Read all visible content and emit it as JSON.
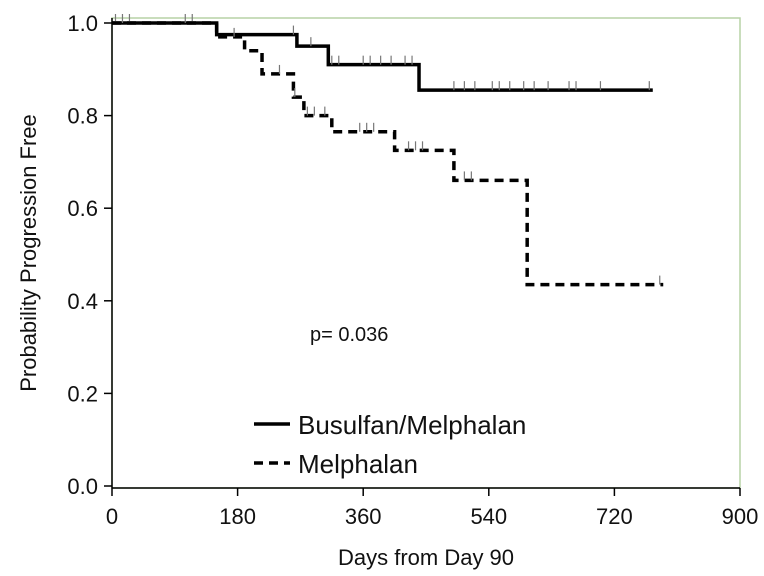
{
  "chart_data": {
    "type": "line",
    "xlabel": "Days from Day 90",
    "ylabel": "Probability Progression Free",
    "xlim": [
      0,
      900
    ],
    "ylim": [
      0.0,
      1.0
    ],
    "x_ticks": [
      0,
      180,
      360,
      540,
      720,
      900
    ],
    "y_ticks": [
      0.0,
      0.2,
      0.4,
      0.6,
      0.8,
      1.0
    ],
    "x_tick_labels": [
      "0",
      "180",
      "360",
      "540",
      "720",
      "900"
    ],
    "y_tick_labels": [
      "0.0",
      "0.2",
      "0.4",
      "0.6",
      "0.8",
      "1.0"
    ],
    "grid": false,
    "legend_position": "bottom-center",
    "annotation": "p= 0.036",
    "series": [
      {
        "name": "Busulfan/Melphalan",
        "style": "solid",
        "color": "#000000",
        "steps": [
          [
            0,
            1.0
          ],
          [
            150,
            0.975
          ],
          [
            265,
            0.95
          ],
          [
            310,
            0.91
          ],
          [
            440,
            0.855
          ],
          [
            775,
            0.855
          ]
        ],
        "censored": [
          5,
          15,
          25,
          105,
          115,
          260,
          285,
          315,
          325,
          360,
          370,
          385,
          400,
          420,
          430,
          490,
          505,
          520,
          545,
          555,
          570,
          590,
          605,
          625,
          655,
          665,
          700,
          770
        ]
      },
      {
        "name": "Melphalan",
        "style": "dashed",
        "color": "#000000",
        "steps": [
          [
            0,
            1.0
          ],
          [
            150,
            0.97
          ],
          [
            190,
            0.94
          ],
          [
            215,
            0.89
          ],
          [
            260,
            0.84
          ],
          [
            275,
            0.8
          ],
          [
            315,
            0.765
          ],
          [
            405,
            0.725
          ],
          [
            490,
            0.66
          ],
          [
            595,
            0.435
          ],
          [
            790,
            0.435
          ]
        ],
        "censored": [
          175,
          240,
          262,
          280,
          290,
          305,
          355,
          365,
          375,
          425,
          435,
          445,
          505,
          515,
          785
        ]
      }
    ]
  },
  "colors": {
    "frame": "#b7d2a6",
    "axis": "#000000",
    "text": "#111111"
  }
}
